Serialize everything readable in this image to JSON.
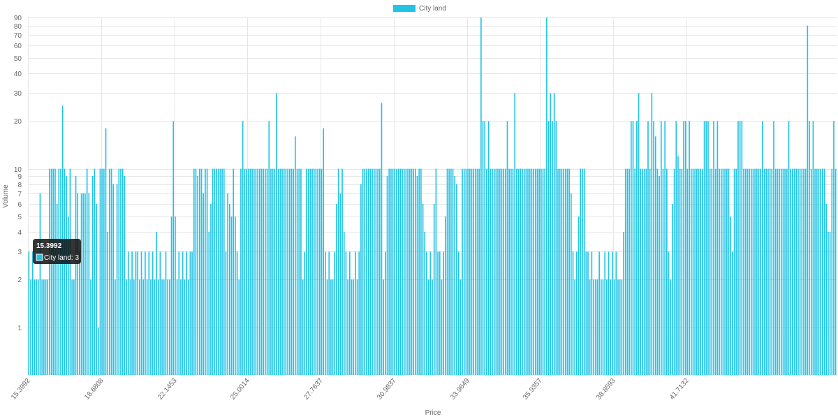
{
  "chart_data": {
    "type": "bar",
    "scale": "log",
    "ylim": [
      0.5,
      90
    ],
    "xlabel": "Price",
    "ylabel": "Volume",
    "series": [
      {
        "name": "City land",
        "color": "#22c4e6",
        "values": [
          3,
          2,
          3,
          2,
          2,
          2,
          7,
          2,
          2,
          2,
          2,
          10,
          10,
          10,
          10,
          6,
          10,
          10,
          25,
          10,
          9,
          5,
          10,
          2,
          2,
          9,
          7,
          3,
          7,
          7,
          7,
          10,
          7,
          2,
          9,
          10,
          6,
          1,
          10,
          10,
          10,
          18,
          4,
          10,
          10,
          8,
          2,
          8,
          10,
          10,
          10,
          9,
          2,
          3,
          2,
          3,
          2,
          3,
          3,
          2,
          3,
          2,
          3,
          2,
          3,
          2,
          3,
          2,
          4,
          2,
          3,
          2,
          2,
          3,
          2,
          2,
          5,
          20,
          5,
          2,
          3,
          2,
          3,
          2,
          3,
          2,
          3,
          3,
          10,
          10,
          9,
          10,
          10,
          7,
          10,
          10,
          4,
          6,
          10,
          10,
          10,
          10,
          10,
          10,
          10,
          3,
          7,
          6,
          5,
          10,
          5,
          3,
          2,
          10,
          20,
          10,
          10,
          10,
          10,
          10,
          10,
          10,
          10,
          10,
          10,
          10,
          10,
          10,
          20,
          10,
          10,
          10,
          30,
          10,
          10,
          10,
          10,
          10,
          10,
          10,
          10,
          10,
          16,
          10,
          10,
          10,
          2,
          3,
          10,
          10,
          10,
          10,
          10,
          10,
          10,
          10,
          10,
          18,
          3,
          2,
          3,
          2,
          2,
          3,
          6,
          10,
          7,
          10,
          4,
          3,
          2,
          3,
          2,
          2,
          3,
          2,
          3,
          8,
          10,
          10,
          10,
          10,
          10,
          10,
          10,
          10,
          10,
          10,
          26,
          2,
          3,
          9,
          10,
          10,
          10,
          10,
          10,
          10,
          10,
          10,
          10,
          10,
          10,
          10,
          10,
          10,
          10,
          9,
          10,
          10,
          6,
          4,
          3,
          2,
          3,
          2,
          6,
          10,
          3,
          3,
          2,
          3,
          5,
          10,
          10,
          10,
          10,
          9,
          8,
          3,
          2,
          10,
          10,
          10,
          10,
          10,
          10,
          10,
          10,
          10,
          10,
          90,
          20,
          20,
          10,
          20,
          10,
          10,
          10,
          10,
          10,
          10,
          10,
          10,
          10,
          20,
          10,
          10,
          10,
          30,
          10,
          10,
          10,
          10,
          10,
          10,
          10,
          10,
          10,
          10,
          10,
          10,
          10,
          10,
          10,
          10,
          90,
          20,
          30,
          20,
          30,
          20,
          10,
          10,
          10,
          10,
          10,
          10,
          10,
          7,
          3,
          2,
          3,
          5,
          10,
          10,
          10,
          3,
          3,
          2,
          3,
          2,
          2,
          2,
          3,
          2,
          2,
          3,
          2,
          3,
          2,
          3,
          2,
          3,
          2,
          2,
          2,
          4,
          10,
          10,
          10,
          20,
          20,
          10,
          20,
          30,
          10,
          10,
          10,
          10,
          20,
          10,
          30,
          20,
          16,
          10,
          9,
          20,
          10,
          20,
          10,
          3,
          2,
          6,
          10,
          20,
          12,
          10,
          10,
          20,
          20,
          10,
          20,
          10,
          10,
          10,
          10,
          10,
          10,
          10,
          20,
          20,
          20,
          10,
          10,
          20,
          10,
          20,
          10,
          10,
          10,
          10,
          10,
          10,
          5,
          3,
          10,
          10,
          20,
          20,
          20,
          10,
          10,
          10,
          10,
          10,
          10,
          10,
          10,
          10,
          10,
          20,
          10,
          10,
          10,
          10,
          10,
          20,
          10,
          10,
          10,
          10,
          10,
          10,
          10,
          20,
          10,
          10,
          10,
          10,
          10,
          10,
          10,
          10,
          10,
          80,
          20,
          10,
          20,
          10,
          10,
          10,
          10,
          10,
          10,
          6,
          4,
          4,
          10,
          20,
          10
        ]
      }
    ],
    "yticks": [
      1,
      2,
      3,
      4,
      5,
      6,
      7,
      8,
      9,
      10,
      20,
      30,
      40,
      50,
      60,
      70,
      80,
      90
    ],
    "xticks": [
      {
        "index": 0,
        "label": "15.3992"
      },
      {
        "index": 39,
        "label": "18.6808"
      },
      {
        "index": 78,
        "label": "22.1453"
      },
      {
        "index": 117,
        "label": "25.0014"
      },
      {
        "index": 156,
        "label": "27.7637"
      },
      {
        "index": 195,
        "label": "30.9837"
      },
      {
        "index": 234,
        "label": "33.9649"
      },
      {
        "index": 273,
        "label": "35.9357"
      },
      {
        "index": 312,
        "label": "38.8593"
      },
      {
        "index": 351,
        "label": "41.7132"
      }
    ],
    "legend": {
      "position": "top",
      "label": "City land"
    },
    "grid": true,
    "tooltip": {
      "title": "15.3992",
      "body": "City land: 3"
    }
  }
}
